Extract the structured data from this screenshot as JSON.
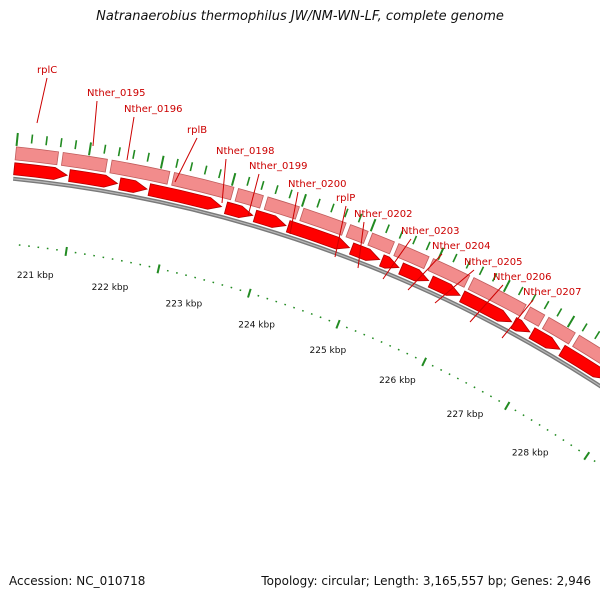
{
  "title": "Natranaerobius thermophilus JW/NM-WN-LF, complete genome",
  "footer": {
    "accession": "Accession: NC_010718",
    "summary": "Topology: circular; Length: 3,165,557 bp; Genes: 2,946"
  },
  "colors": {
    "label": "#cc0000",
    "gene_fill": "#ff0000",
    "gene_stroke": "#b30000",
    "band_fill": "#f28c8c",
    "band_stroke": "#c05c5c",
    "tick": "#228b22",
    "backbone": "#7a7a7a"
  },
  "tick_labels": [
    "221 kbp",
    "222 kbp",
    "223 kbp",
    "224 kbp",
    "225 kbp",
    "226 kbp",
    "227 kbp",
    "228 kbp"
  ],
  "gene_labels": [
    "rplC",
    "Nther_0195",
    "Nther_0196",
    "rplB",
    "Nther_0198",
    "Nther_0199",
    "Nther_0200",
    "rplP",
    "Nther_0202",
    "Nther_0203",
    "Nther_0204",
    "Nther_0205",
    "Nther_0206",
    "Nther_0207"
  ]
}
